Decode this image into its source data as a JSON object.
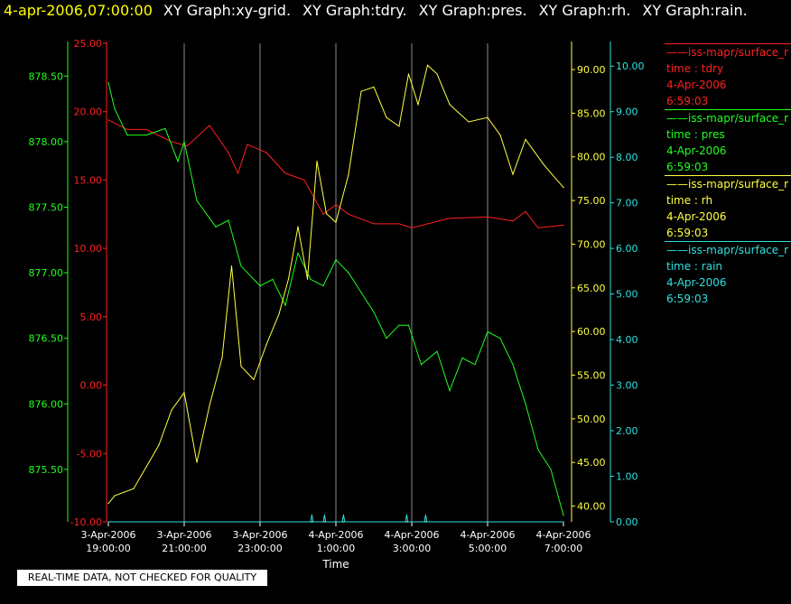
{
  "header": {
    "date": "4-apr-2006,07:00:00",
    "titles": [
      "XY Graph:xy-grid.",
      "XY Graph:tdry.",
      "XY Graph:pres.",
      "XY Graph:rh.",
      "XY Graph:rain."
    ]
  },
  "legend": [
    {
      "name": "——iss-mapr/surface_r",
      "var": "time : tdry",
      "date": "4-Apr-2006",
      "time": "6:59:03",
      "color": "#ff2020"
    },
    {
      "name": "——iss-mapr/surface_r",
      "var": "time : pres",
      "date": "4-Apr-2006",
      "time": "6:59:03",
      "color": "#20ff20"
    },
    {
      "name": "——iss-mapr/surface_r",
      "var": "time : rh",
      "date": "4-Apr-2006",
      "time": "6:59:03",
      "color": "#ffff40"
    },
    {
      "name": "——iss-mapr/surface_r",
      "var": "time : rain",
      "date": "4-Apr-2006",
      "time": "6:59:03",
      "color": "#30e0e0"
    }
  ],
  "note": "REAL-TIME DATA, NOT CHECKED FOR QUALITY",
  "chart_data": {
    "type": "line",
    "xlabel": "Time",
    "x_ticks": [
      [
        "3-Apr-2006",
        "19:00:00"
      ],
      [
        "3-Apr-2006",
        "21:00:00"
      ],
      [
        "3-Apr-2006",
        "23:00:00"
      ],
      [
        "4-Apr-2006",
        "1:00:00"
      ],
      [
        "4-Apr-2006",
        "3:00:00"
      ],
      [
        "4-Apr-2006",
        "5:00:00"
      ],
      [
        "4-Apr-2006",
        "7:00:00"
      ]
    ],
    "xlim": [
      "2006-04-03T19:00",
      "2006-04-04T07:00"
    ],
    "grid": "vertical",
    "axes": [
      {
        "id": "pres",
        "color": "#20ff20",
        "ticks": [
          "875.50",
          "876.00",
          "876.50",
          "877.00",
          "877.50",
          "878.00",
          "878.50"
        ],
        "ylim": [
          875.1,
          878.75
        ]
      },
      {
        "id": "tdry",
        "color": "#ff2020",
        "ticks": [
          "-10.00",
          "-5.00",
          "0.00",
          "5.00",
          "10.00",
          "15.00",
          "20.00",
          "25.00"
        ],
        "ylim": [
          -10,
          25
        ]
      },
      {
        "id": "rh",
        "color": "#ffff40",
        "ticks": [
          "40.00",
          "45.00",
          "50.00",
          "55.00",
          "60.00",
          "65.00",
          "70.00",
          "75.00",
          "80.00",
          "85.00",
          "90.00"
        ],
        "ylim": [
          38.2,
          93.0
        ]
      },
      {
        "id": "rain",
        "color": "#30e0e0",
        "ticks": [
          "0.00",
          "1.00",
          "2.00",
          "3.00",
          "4.00",
          "5.00",
          "6.00",
          "7.00",
          "8.00",
          "9.00",
          "10.00"
        ],
        "ylim": [
          0,
          10.5
        ]
      }
    ],
    "series": [
      {
        "axis": "tdry",
        "color": "#ff2020",
        "x": [
          "2006-04-03T19:00",
          "2006-04-03T19:30",
          "2006-04-03T20:00",
          "2006-04-03T20:40",
          "2006-04-03T21:05",
          "2006-04-03T21:40",
          "2006-04-03T22:10",
          "2006-04-03T22:25",
          "2006-04-03T22:40",
          "2006-04-03T23:10",
          "2006-04-03T23:40",
          "2006-04-04T00:10",
          "2006-04-04T00:40",
          "2006-04-04T01:00",
          "2006-04-04T01:20",
          "2006-04-04T02:00",
          "2006-04-04T02:40",
          "2006-04-04T03:00",
          "2006-04-04T04:00",
          "2006-04-04T05:00",
          "2006-04-04T05:40",
          "2006-04-04T06:00",
          "2006-04-04T06:20",
          "2006-04-04T07:00"
        ],
        "values": [
          19.4,
          18.7,
          18.7,
          17.8,
          17.5,
          19.0,
          17.0,
          15.5,
          17.6,
          17.0,
          15.5,
          15.0,
          12.5,
          13.2,
          12.5,
          11.8,
          11.8,
          11.5,
          12.2,
          12.3,
          12.0,
          12.7,
          11.5,
          11.7
        ]
      },
      {
        "axis": "pres",
        "color": "#20ff20",
        "x": [
          "2006-04-03T19:00",
          "2006-04-03T19:10",
          "2006-04-03T19:30",
          "2006-04-03T20:00",
          "2006-04-03T20:30",
          "2006-04-03T20:50",
          "2006-04-03T21:00",
          "2006-04-03T21:20",
          "2006-04-03T21:50",
          "2006-04-03T22:10",
          "2006-04-03T22:30",
          "2006-04-03T23:00",
          "2006-04-03T23:20",
          "2006-04-03T23:40",
          "2006-04-04T00:00",
          "2006-04-04T00:20",
          "2006-04-04T00:40",
          "2006-04-04T01:00",
          "2006-04-04T01:20",
          "2006-04-04T01:40",
          "2006-04-04T02:00",
          "2006-04-04T02:20",
          "2006-04-04T02:40",
          "2006-04-04T02:55",
          "2006-04-04T03:15",
          "2006-04-04T03:40",
          "2006-04-04T04:00",
          "2006-04-04T04:20",
          "2006-04-04T04:40",
          "2006-04-04T05:00",
          "2006-04-04T05:20",
          "2006-04-04T05:40",
          "2006-04-04T06:00",
          "2006-04-04T06:20",
          "2006-04-04T06:40",
          "2006-04-04T07:00"
        ],
        "values": [
          878.45,
          878.25,
          878.05,
          878.05,
          878.1,
          877.85,
          878.0,
          877.55,
          877.35,
          877.4,
          877.05,
          876.9,
          876.95,
          876.75,
          877.15,
          876.95,
          876.9,
          877.1,
          877.0,
          876.85,
          876.7,
          876.5,
          876.6,
          876.6,
          876.3,
          876.4,
          876.1,
          876.35,
          876.3,
          876.55,
          876.5,
          876.3,
          876.0,
          875.65,
          875.5,
          875.15
        ]
      },
      {
        "axis": "rh",
        "color": "#ffff40",
        "x": [
          "2006-04-03T19:00",
          "2006-04-03T19:10",
          "2006-04-03T19:40",
          "2006-04-03T20:00",
          "2006-04-03T20:20",
          "2006-04-03T20:40",
          "2006-04-03T21:00",
          "2006-04-03T21:20",
          "2006-04-03T21:40",
          "2006-04-03T22:00",
          "2006-04-03T22:15",
          "2006-04-03T22:30",
          "2006-04-03T22:50",
          "2006-04-03T23:10",
          "2006-04-03T23:30",
          "2006-04-03T23:45",
          "2006-04-04T00:00",
          "2006-04-04T00:15",
          "2006-04-04T00:30",
          "2006-04-04T00:45",
          "2006-04-04T01:00",
          "2006-04-04T01:20",
          "2006-04-04T01:40",
          "2006-04-04T02:00",
          "2006-04-04T02:20",
          "2006-04-04T02:40",
          "2006-04-04T02:55",
          "2006-04-04T03:10",
          "2006-04-04T03:25",
          "2006-04-04T03:40",
          "2006-04-04T04:00",
          "2006-04-04T04:30",
          "2006-04-04T05:00",
          "2006-04-04T05:20",
          "2006-04-04T05:40",
          "2006-04-04T06:00",
          "2006-04-04T06:30",
          "2006-04-04T07:00"
        ],
        "values": [
          40.3,
          41.2,
          42.0,
          44.5,
          47.0,
          51.0,
          53.0,
          45.0,
          51.5,
          57.0,
          67.5,
          56.0,
          54.5,
          58.5,
          62.0,
          66.0,
          72.0,
          66.0,
          79.5,
          73.5,
          72.5,
          78.0,
          87.5,
          88.0,
          84.5,
          83.5,
          89.5,
          86.0,
          90.5,
          89.5,
          86.0,
          84.0,
          84.5,
          82.5,
          78.0,
          82.0,
          79.0,
          76.5
        ]
      },
      {
        "axis": "rain",
        "color": "#30e0e0",
        "x": [
          "2006-04-03T19:00",
          "2006-04-04T00:20",
          "2006-04-04T00:22",
          "2006-04-04T00:24",
          "2006-04-04T00:40",
          "2006-04-04T00:42",
          "2006-04-04T00:44",
          "2006-04-04T01:10",
          "2006-04-04T01:12",
          "2006-04-04T01:14",
          "2006-04-04T02:50",
          "2006-04-04T02:52",
          "2006-04-04T02:54",
          "2006-04-04T03:20",
          "2006-04-04T03:22",
          "2006-04-04T03:24",
          "2006-04-04T07:00"
        ],
        "values": [
          0,
          0,
          0.15,
          0,
          0,
          0.15,
          0,
          0,
          0.15,
          0,
          0,
          0.15,
          0,
          0,
          0.15,
          0,
          0
        ]
      }
    ]
  }
}
